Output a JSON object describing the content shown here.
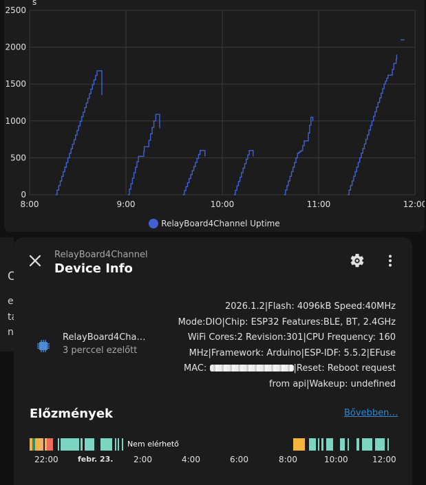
{
  "chart": {
    "legend_label": "RelayBoard4Channel Uptime",
    "series_color": "#4361d4"
  },
  "chart_data": {
    "type": "line",
    "title": "",
    "xlabel": "",
    "ylabel": "s",
    "xlim": [
      8.0,
      12.0
    ],
    "ylim": [
      0,
      2500
    ],
    "x_ticks": [
      "8:00",
      "9:00",
      "10:00",
      "11:00",
      "12:00"
    ],
    "y_ticks": [
      "0",
      "500",
      "1000",
      "1500",
      "2000",
      "2500"
    ],
    "grid": true,
    "series": [
      {
        "name": "RelayBoard4Channel Uptime",
        "segments": [
          [
            [
              8.27,
              0
            ],
            [
              8.7,
              1680
            ],
            [
              8.75,
              1680
            ],
            [
              8.75,
              1350
            ]
          ],
          [
            [
              9.02,
              0
            ],
            [
              9.13,
              520
            ],
            [
              9.18,
              520
            ],
            [
              9.19,
              650
            ],
            [
              9.22,
              650
            ],
            [
              9.29,
              1000
            ],
            [
              9.31,
              1000
            ],
            [
              9.31,
              1090
            ],
            [
              9.35,
              1090
            ],
            [
              9.35,
              900
            ]
          ],
          [
            [
              9.59,
              0
            ],
            [
              9.77,
              600
            ],
            [
              9.82,
              600
            ],
            [
              9.82,
              520
            ]
          ],
          [
            [
              10.12,
              0
            ],
            [
              10.28,
              600
            ],
            [
              10.32,
              600
            ],
            [
              10.32,
              520
            ]
          ],
          [
            [
              10.64,
              0
            ],
            [
              10.78,
              560
            ],
            [
              10.82,
              600
            ],
            [
              10.85,
              730
            ],
            [
              10.88,
              730
            ],
            [
              10.92,
              1050
            ],
            [
              10.94,
              1050
            ],
            [
              10.94,
              1000
            ]
          ],
          [
            [
              11.3,
              0
            ],
            [
              11.68,
              1500
            ],
            [
              11.72,
              1620
            ],
            [
              11.75,
              1620
            ],
            [
              11.78,
              1780
            ],
            [
              11.8,
              1780
            ],
            [
              11.81,
              1900
            ]
          ],
          [
            [
              11.85,
              2100
            ],
            [
              11.89,
              2100
            ]
          ]
        ]
      }
    ]
  },
  "dialog": {
    "subtitle": "RelayBoard4Channel",
    "title": "Device Info",
    "device_name": "RelayBoard4Cha…",
    "device_time": "3 perccel ezelőtt",
    "info_lines": [
      "2026.1.2|Flash: 4096kB Speed:40MHz",
      "Mode:DIO|Chip: ESP32 Features:BLE, BT, 2.4GHz",
      "WiFi Cores:2 Revision:301|CPU Frequency: 160",
      "MHz|Framework: Arduino|ESP-IDF: 5.5.2|EFuse"
    ],
    "mac_prefix": "MAC: ",
    "mac_suffix": "|Reset: Reboot request",
    "info_last": "from api|Wakeup: undefined",
    "history_title": "Előzmények",
    "history_more": "Bővebben…",
    "unavailable_label": "Nem elérhető",
    "timeline_axis": [
      "22:00",
      "febr. 23.",
      "2:00",
      "4:00",
      "6:00",
      "8:00",
      "10:00",
      "12:00"
    ]
  },
  "background": {
    "letters": [
      "O",
      "e",
      "ta",
      "n"
    ]
  }
}
